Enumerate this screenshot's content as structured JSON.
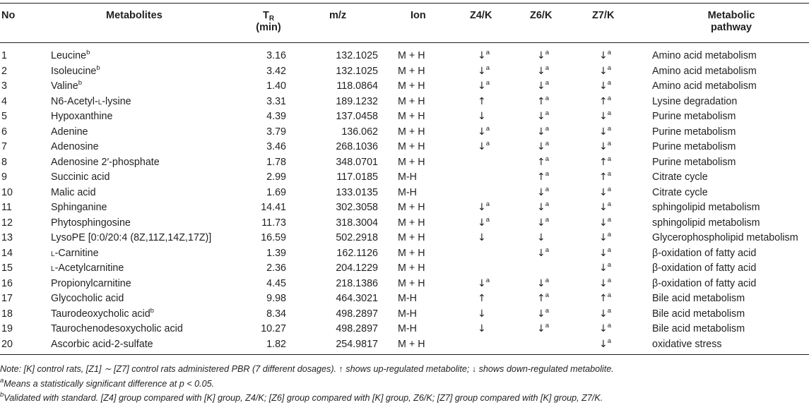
{
  "header": {
    "no": "No",
    "metabolites": "Metabolites",
    "tr_main": "T",
    "tr_sub": "R",
    "tr_unit": "(min)",
    "mz": "m/z",
    "ion": "Ion",
    "z4k": "Z4/K",
    "z6k": "Z6/K",
    "z7k": "Z7/K",
    "pathway_line1": "Metabolic",
    "pathway_line2": "pathway"
  },
  "rows": [
    {
      "no": "1",
      "name": "Leucine",
      "name_sup": "b",
      "tr": "3.16",
      "mz": "132.1025",
      "ion": "M + H",
      "z4": "↓",
      "z4_sup": "a",
      "z6": "↓",
      "z6_sup": "a",
      "z7": "↓",
      "z7_sup": "a",
      "pathway": "Amino acid metabolism"
    },
    {
      "no": "2",
      "name": "Isoleucine",
      "name_sup": "b",
      "tr": "3.42",
      "mz": "132.1025",
      "ion": "M + H",
      "z4": "↓",
      "z4_sup": "a",
      "z6": "↓",
      "z6_sup": "a",
      "z7": "↓",
      "z7_sup": "a",
      "pathway": "Amino acid metabolism"
    },
    {
      "no": "3",
      "name": "Valine",
      "name_sup": "b",
      "tr": "1.40",
      "mz": "118.0864",
      "ion": "M + H",
      "z4": "↓",
      "z4_sup": "a",
      "z6": "↓",
      "z6_sup": "a",
      "z7": "↓",
      "z7_sup": "a",
      "pathway": "Amino acid metabolism"
    },
    {
      "no": "4",
      "name_pre": "N6-Acetyl-",
      "name_sc": "L",
      "name_post": "-lysine",
      "tr": "3.31",
      "mz": "189.1232",
      "ion": "M + H",
      "z4": "↑",
      "z4_sup": "",
      "z6": "↑",
      "z6_sup": "a",
      "z7": "↑",
      "z7_sup": "a",
      "pathway": "Lysine degradation"
    },
    {
      "no": "5",
      "name": "Hypoxanthine",
      "name_sup": "",
      "tr": "4.39",
      "mz": "137.0458",
      "ion": "M + H",
      "z4": "↓",
      "z4_sup": "",
      "z6": "↓",
      "z6_sup": "a",
      "z7": "↓",
      "z7_sup": "a",
      "pathway": "Purine metabolism"
    },
    {
      "no": "6",
      "name": "Adenine",
      "name_sup": "",
      "tr": "3.79",
      "mz": "136.062",
      "ion": "M + H",
      "z4": "↓",
      "z4_sup": "a",
      "z6": "↓",
      "z6_sup": "a",
      "z7": "↓",
      "z7_sup": "a",
      "pathway": "Purine metabolism"
    },
    {
      "no": "7",
      "name": "Adenosine",
      "name_sup": "",
      "tr": "3.46",
      "mz": "268.1036",
      "ion": "M + H",
      "z4": "↓",
      "z4_sup": "a",
      "z6": "↓",
      "z6_sup": "a",
      "z7": "↓",
      "z7_sup": "a",
      "pathway": "Purine metabolism"
    },
    {
      "no": "8",
      "name": "Adenosine 2′-phosphate",
      "name_sup": "",
      "tr": "1.78",
      "mz": "348.0701",
      "ion": "M + H",
      "z4": "",
      "z4_sup": "",
      "z6": "↑",
      "z6_sup": "a",
      "z7": "↑",
      "z7_sup": "a",
      "pathway": "Purine metabolism"
    },
    {
      "no": "9",
      "name": "Succinic acid",
      "name_sup": "",
      "tr": "2.99",
      "mz": "117.0185",
      "ion": "M-H",
      "z4": "",
      "z4_sup": "",
      "z6": "↑",
      "z6_sup": "a",
      "z7": "↑",
      "z7_sup": "a",
      "pathway": "Citrate cycle"
    },
    {
      "no": "10",
      "name": "Malic acid",
      "name_sup": "",
      "tr": "1.69",
      "mz": "133.0135",
      "ion": "M-H",
      "z4": "",
      "z4_sup": "",
      "z6": "↓",
      "z6_sup": "a",
      "z7": "↓",
      "z7_sup": "a",
      "pathway": "Citrate cycle"
    },
    {
      "no": "11",
      "name": "Sphinganine",
      "name_sup": "",
      "tr": "14.41",
      "mz": "302.3058",
      "ion": "M + H",
      "z4": "↓",
      "z4_sup": "a",
      "z6": "↓",
      "z6_sup": "a",
      "z7": "↓",
      "z7_sup": "a",
      "pathway": "sphingolipid metabolism"
    },
    {
      "no": "12",
      "name": "Phytosphingosine",
      "name_sup": "",
      "tr": "11.73",
      "mz": "318.3004",
      "ion": "M + H",
      "z4": "↓",
      "z4_sup": "a",
      "z6": "↓",
      "z6_sup": "a",
      "z7": "↓",
      "z7_sup": "a",
      "pathway": "sphingolipid metabolism"
    },
    {
      "no": "13",
      "name": "LysoPE [0:0/20:4 (8Z,11Z,14Z,17Z)]",
      "name_sup": "",
      "tr": "16.59",
      "mz": "502.2918",
      "ion": "M + H",
      "z4": "↓",
      "z4_sup": "",
      "z6": "↓",
      "z6_sup": "",
      "z7": "↓",
      "z7_sup": "a",
      "pathway": "Glycerophospholipid metabolism"
    },
    {
      "no": "14",
      "name_pre": "",
      "name_sc": "L",
      "name_post": "-Carnitine",
      "tr": "1.39",
      "mz": "162.1126",
      "ion": "M + H",
      "z4": "",
      "z4_sup": "",
      "z6": "↓",
      "z6_sup": "a",
      "z7": "↓",
      "z7_sup": "a",
      "pathway": "β-oxidation of fatty acid"
    },
    {
      "no": "15",
      "name_pre": "",
      "name_sc": "L",
      "name_post": "-Acetylcarnitine",
      "tr": "2.36",
      "mz": "204.1229",
      "ion": "M + H",
      "z4": "",
      "z4_sup": "",
      "z6": "",
      "z6_sup": "",
      "z7": "↓",
      "z7_sup": "a",
      "pathway": "β-oxidation of fatty acid"
    },
    {
      "no": "16",
      "name": "Propionylcarnitine",
      "name_sup": "",
      "tr": "4.45",
      "mz": "218.1386",
      "ion": "M + H",
      "z4": "↓",
      "z4_sup": "a",
      "z6": "↓",
      "z6_sup": "a",
      "z7": "↓",
      "z7_sup": "a",
      "pathway": "β-oxidation of fatty acid"
    },
    {
      "no": "17",
      "name": "Glycocholic acid",
      "name_sup": "",
      "tr": "9.98",
      "mz": "464.3021",
      "ion": "M-H",
      "z4": "↑",
      "z4_sup": "",
      "z6": "↑",
      "z6_sup": "a",
      "z7": "↑",
      "z7_sup": "a",
      "pathway": "Bile acid metabolism"
    },
    {
      "no": "18",
      "name": "Taurodeoxycholic acid",
      "name_sup": "b",
      "tr": "8.34",
      "mz": "498.2897",
      "ion": "M-H",
      "z4": "↓",
      "z4_sup": "",
      "z6": "↓",
      "z6_sup": "a",
      "z7": "↓",
      "z7_sup": "a",
      "pathway": "Bile acid metabolism"
    },
    {
      "no": "19",
      "name": "Taurochenodesoxycholic acid",
      "name_sup": "",
      "tr": "10.27",
      "mz": "498.2897",
      "ion": "M-H",
      "z4": "↓",
      "z4_sup": "",
      "z6": "↓",
      "z6_sup": "a",
      "z7": "↓",
      "z7_sup": "a",
      "pathway": "Bile acid metabolism"
    },
    {
      "no": "20",
      "name": "Ascorbic acid-2-sulfate",
      "name_sup": "",
      "tr": "1.82",
      "mz": "254.9817",
      "ion": "M + H",
      "z4": "",
      "z4_sup": "",
      "z6": "",
      "z6_sup": "",
      "z7": "↓",
      "z7_sup": "a",
      "pathway": "oxidative stress"
    }
  ],
  "notes": {
    "note1": "Note: [K] control rats, [Z1] ∼ [Z7] control rats administered PBR (7 different dosages). ↑ shows up-regulated metabolite; ↓ shows down-regulated metabolite.",
    "note2_sup": "a",
    "note2": "Means a statistically significant difference at p < 0.05.",
    "note3_sup": "b",
    "note3": "Validated with standard. [Z4] group compared with [K] group, Z4/K; [Z6] group compared with [K] group, Z6/K; [Z7] group compared with [K] group, Z7/K."
  },
  "colors": {
    "text": "#231f20",
    "rule": "#231f20",
    "background": "#ffffff"
  }
}
